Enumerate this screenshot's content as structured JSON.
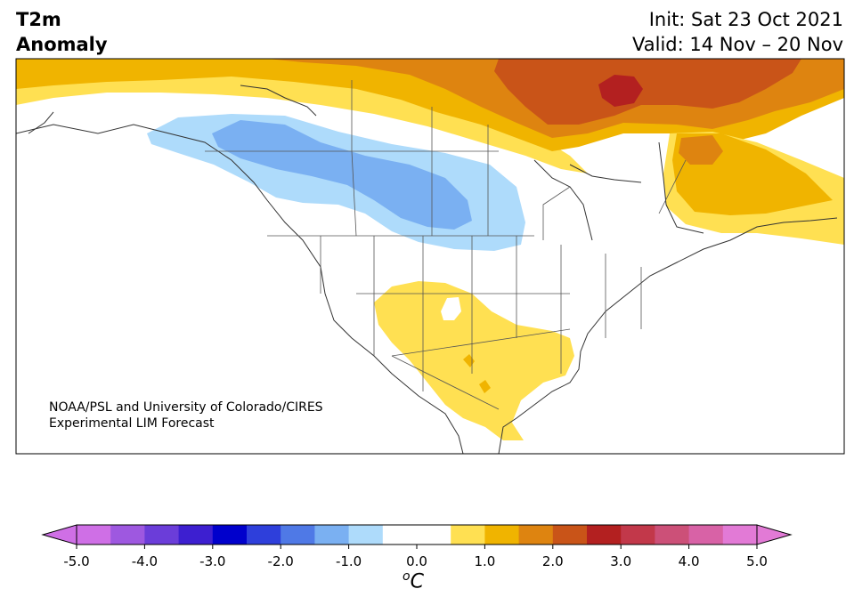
{
  "header": {
    "title_line1": "T2m",
    "title_line2": "Anomaly",
    "init": "Init: Sat 23 Oct 2021",
    "valid": "Valid: 14 Nov – 20 Nov"
  },
  "credit": {
    "line1": "NOAA/PSL and University of Colorado/CIRES",
    "line2": "Experimental LIM Forecast"
  },
  "colorbar": {
    "unit_o": "o",
    "unit_c": "C",
    "ticks": [
      "-5.0",
      "-4.0",
      "-3.0",
      "-2.0",
      "-1.0",
      "0.0",
      "1.0",
      "2.0",
      "3.0",
      "4.0",
      "5.0"
    ],
    "colors": [
      "#cf6fe6",
      "#9e58e0",
      "#6b3dd9",
      "#3d1fd0",
      "#0000cc",
      "#2e3fdb",
      "#4f79e6",
      "#7ab0f2",
      "#aedbfb",
      "#ffffff",
      "#ffffff",
      "#ffe052",
      "#f0b400",
      "#de8410",
      "#c95418",
      "#b32020",
      "#c2384a",
      "#cc5078",
      "#d862a6",
      "#e27ad6"
    ],
    "under_color": "#cf6fe6",
    "over_color": "#e27ad6"
  },
  "map": {
    "anomaly_colors": {
      "light_blue": "#aedbfb",
      "mid_blue": "#7ab0f2",
      "yellow": "#ffe052",
      "gold": "#f0b400",
      "orange": "#de8410",
      "dark_orange": "#c95418",
      "red": "#b32020"
    },
    "region": "North America"
  }
}
